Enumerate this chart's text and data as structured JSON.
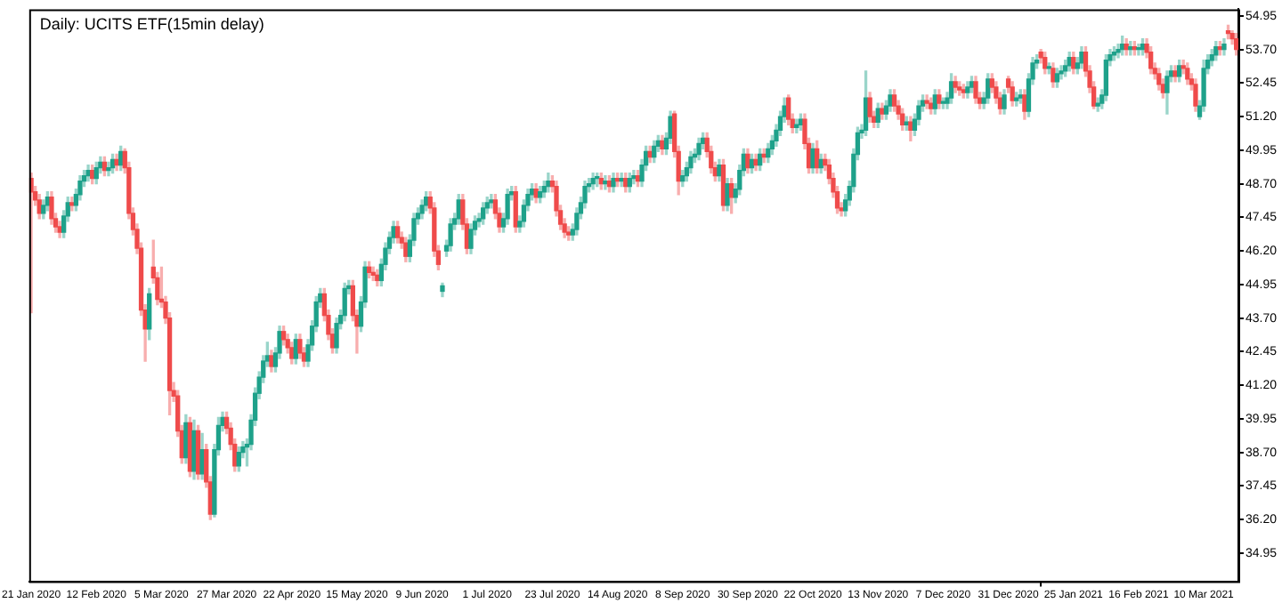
{
  "chart_data": {
    "type": "candlestick",
    "title": "Daily: UCITS ETF(15min delay)",
    "categories": [
      "21 Jan 2020",
      null,
      null,
      null,
      null,
      null,
      null,
      null,
      null,
      null,
      null,
      null,
      null,
      null,
      null,
      null,
      "12 Feb 2020",
      null,
      null,
      null,
      null,
      null,
      null,
      null,
      null,
      null,
      null,
      null,
      null,
      null,
      null,
      null,
      "5 Mar 2020",
      null,
      null,
      null,
      null,
      null,
      null,
      null,
      null,
      null,
      null,
      null,
      null,
      null,
      null,
      null,
      "27 Mar 2020",
      null,
      null,
      null,
      null,
      null,
      null,
      null,
      null,
      null,
      null,
      null,
      null,
      null,
      null,
      null,
      "22 Apr 2020",
      null,
      null,
      null,
      null,
      null,
      null,
      null,
      null,
      null,
      null,
      null,
      null,
      null,
      null,
      null,
      "15 May 2020",
      null,
      null,
      null,
      null,
      null,
      null,
      null,
      null,
      null,
      null,
      null,
      null,
      null,
      null,
      null,
      "9 Jun 2020",
      null,
      null,
      null,
      null,
      null,
      null,
      null,
      null,
      null,
      null,
      null,
      null,
      null,
      null,
      null,
      "1 Jul 2020",
      null,
      null,
      null,
      null,
      null,
      null,
      null,
      null,
      null,
      null,
      null,
      null,
      null,
      null,
      null,
      "23 Jul 2020",
      null,
      null,
      null,
      null,
      null,
      null,
      null,
      null,
      null,
      null,
      null,
      null,
      null,
      null,
      null,
      "14 Aug 2020",
      null,
      null,
      null,
      null,
      null,
      null,
      null,
      null,
      null,
      null,
      null,
      null,
      null,
      null,
      null,
      "8 Sep 2020",
      null,
      null,
      null,
      null,
      null,
      null,
      null,
      null,
      null,
      null,
      null,
      null,
      null,
      null,
      null,
      "30 Sep 2020",
      null,
      null,
      null,
      null,
      null,
      null,
      null,
      null,
      null,
      null,
      null,
      null,
      null,
      null,
      null,
      "22 Oct 2020",
      null,
      null,
      null,
      null,
      null,
      null,
      null,
      null,
      null,
      null,
      null,
      null,
      null,
      null,
      null,
      "13 Nov 2020",
      null,
      null,
      null,
      null,
      null,
      null,
      null,
      null,
      null,
      null,
      null,
      null,
      null,
      null,
      null,
      "7 Dec 2020",
      null,
      null,
      null,
      null,
      null,
      null,
      null,
      null,
      null,
      null,
      null,
      null,
      null,
      null,
      null,
      "31 Dec 2020",
      null,
      null,
      null,
      null,
      null,
      null,
      null,
      null,
      null,
      null,
      null,
      null,
      null,
      null,
      null,
      "25 Jan 2021",
      null,
      null,
      null,
      null,
      null,
      null,
      null,
      null,
      null,
      null,
      null,
      null,
      null,
      null,
      null,
      "16 Feb 2021",
      null,
      null,
      null,
      null,
      null,
      null,
      null,
      null,
      null,
      null,
      null,
      null,
      null,
      null,
      null,
      "10 Mar 2021",
      null,
      null,
      null,
      null,
      null,
      null,
      null,
      null
    ],
    "ohlc": [
      [
        48.9,
        49.1,
        43.9,
        48.4
      ],
      [
        48.4,
        48.6,
        47.9,
        48.1
      ],
      [
        48.1,
        48.3,
        47.4,
        47.6
      ],
      [
        47.6,
        48.1,
        47.4,
        47.9
      ],
      [
        47.9,
        48.4,
        47.7,
        48.2
      ],
      [
        48.2,
        48.4,
        47.2,
        47.4
      ],
      [
        47.4,
        47.6,
        46.9,
        47.1
      ],
      [
        47.1,
        47.3,
        46.7,
        46.9
      ],
      [
        46.9,
        47.7,
        46.7,
        47.5
      ],
      [
        47.5,
        48.2,
        47.3,
        48.0
      ],
      [
        48.0,
        48.2,
        47.7,
        47.9
      ],
      [
        47.9,
        48.5,
        47.7,
        48.3
      ],
      [
        48.3,
        49.0,
        48.1,
        48.8
      ],
      [
        48.8,
        49.2,
        48.6,
        49.0
      ],
      [
        49.0,
        49.4,
        48.8,
        49.2
      ],
      [
        49.2,
        49.4,
        48.7,
        48.9
      ],
      [
        48.9,
        49.5,
        48.7,
        49.3
      ],
      [
        49.3,
        49.7,
        49.1,
        49.5
      ],
      [
        49.5,
        49.7,
        49.0,
        49.2
      ],
      [
        49.2,
        49.5,
        49.0,
        49.3
      ],
      [
        49.3,
        49.8,
        49.1,
        49.6
      ],
      [
        49.6,
        49.8,
        49.2,
        49.4
      ],
      [
        49.4,
        50.1,
        49.2,
        49.9
      ],
      [
        49.9,
        50.0,
        49.1,
        49.3
      ],
      [
        49.3,
        49.5,
        47.4,
        47.6
      ],
      [
        47.6,
        47.8,
        46.8,
        47.0
      ],
      [
        47.0,
        47.2,
        46.1,
        46.3
      ],
      [
        46.3,
        46.5,
        43.8,
        44.0
      ],
      [
        44.0,
        44.2,
        42.1,
        43.3
      ],
      [
        43.3,
        44.8,
        42.9,
        44.6
      ],
      [
        45.6,
        46.6,
        45.0,
        45.2
      ],
      [
        45.2,
        45.4,
        44.2,
        44.4
      ],
      [
        44.4,
        45.6,
        44.1,
        44.3
      ],
      [
        44.3,
        44.5,
        43.5,
        43.7
      ],
      [
        43.7,
        43.9,
        40.1,
        41.0
      ],
      [
        41.0,
        41.3,
        40.6,
        40.8
      ],
      [
        40.8,
        41.0,
        39.3,
        39.5
      ],
      [
        39.5,
        39.7,
        38.3,
        38.5
      ],
      [
        38.5,
        40.1,
        38.3,
        39.8
      ],
      [
        39.8,
        40.0,
        37.8,
        38.0
      ],
      [
        38.0,
        39.9,
        37.7,
        39.5
      ],
      [
        39.5,
        39.7,
        37.7,
        37.9
      ],
      [
        37.9,
        39.4,
        37.7,
        38.8
      ],
      [
        38.8,
        39.0,
        37.4,
        37.6
      ],
      [
        37.6,
        37.8,
        36.2,
        36.4
      ],
      [
        36.4,
        39.0,
        36.3,
        38.8
      ],
      [
        38.8,
        40.0,
        38.6,
        39.7
      ],
      [
        39.7,
        40.2,
        39.5,
        40.0
      ],
      [
        40.0,
        40.2,
        39.4,
        39.6
      ],
      [
        39.6,
        39.8,
        38.8,
        39.0
      ],
      [
        39.0,
        39.2,
        38.0,
        38.2
      ],
      [
        38.2,
        38.9,
        38.0,
        38.7
      ],
      [
        38.7,
        39.1,
        38.5,
        38.9
      ],
      [
        38.9,
        39.2,
        38.2,
        39.0
      ],
      [
        39.0,
        40.1,
        38.8,
        39.9
      ],
      [
        39.9,
        41.1,
        39.7,
        40.9
      ],
      [
        40.9,
        41.7,
        40.7,
        41.5
      ],
      [
        41.5,
        42.3,
        41.3,
        42.1
      ],
      [
        42.1,
        42.8,
        41.9,
        42.3
      ],
      [
        42.3,
        42.5,
        41.7,
        41.9
      ],
      [
        41.9,
        42.6,
        41.7,
        42.4
      ],
      [
        42.4,
        43.4,
        42.2,
        43.2
      ],
      [
        43.2,
        43.4,
        42.7,
        42.9
      ],
      [
        42.9,
        43.1,
        42.4,
        42.6
      ],
      [
        42.6,
        42.8,
        42.0,
        42.2
      ],
      [
        42.2,
        43.1,
        42.0,
        42.9
      ],
      [
        42.9,
        43.1,
        42.2,
        42.4
      ],
      [
        42.4,
        42.6,
        41.9,
        42.1
      ],
      [
        42.1,
        42.9,
        41.9,
        42.7
      ],
      [
        42.7,
        43.6,
        42.5,
        43.4
      ],
      [
        43.4,
        44.5,
        43.2,
        44.3
      ],
      [
        44.3,
        44.8,
        44.1,
        44.6
      ],
      [
        44.6,
        44.8,
        43.6,
        43.8
      ],
      [
        43.8,
        44.0,
        42.9,
        43.1
      ],
      [
        43.1,
        43.3,
        42.4,
        42.6
      ],
      [
        42.6,
        43.7,
        42.4,
        43.5
      ],
      [
        43.5,
        44.0,
        43.3,
        43.8
      ],
      [
        43.8,
        45.0,
        43.6,
        44.8
      ],
      [
        44.8,
        45.1,
        44.6,
        44.9
      ],
      [
        44.9,
        45.1,
        43.6,
        43.8
      ],
      [
        43.8,
        44.0,
        42.4,
        43.4
      ],
      [
        43.4,
        44.5,
        43.2,
        44.3
      ],
      [
        44.3,
        45.8,
        44.1,
        45.6
      ],
      [
        45.6,
        45.8,
        45.2,
        45.4
      ],
      [
        45.4,
        45.6,
        45.1,
        45.3
      ],
      [
        45.3,
        45.5,
        44.9,
        45.1
      ],
      [
        45.1,
        45.9,
        44.9,
        45.7
      ],
      [
        45.7,
        46.5,
        45.5,
        46.3
      ],
      [
        46.3,
        46.9,
        46.1,
        46.7
      ],
      [
        46.7,
        47.3,
        46.5,
        47.1
      ],
      [
        47.1,
        47.3,
        46.5,
        46.7
      ],
      [
        46.7,
        46.9,
        46.3,
        46.5
      ],
      [
        46.5,
        46.7,
        45.8,
        46.0
      ],
      [
        46.0,
        46.8,
        45.8,
        46.6
      ],
      [
        46.6,
        47.6,
        46.4,
        47.4
      ],
      [
        47.4,
        47.8,
        47.2,
        47.6
      ],
      [
        47.6,
        48.1,
        47.4,
        47.9
      ],
      [
        47.9,
        48.4,
        47.7,
        48.2
      ],
      [
        48.2,
        48.4,
        47.6,
        47.8
      ],
      [
        47.8,
        48.0,
        46.0,
        46.2
      ],
      [
        46.2,
        46.4,
        45.5,
        45.7
      ],
      [
        44.7,
        45.0,
        44.5,
        44.9
      ],
      [
        46.2,
        46.6,
        46.0,
        46.4
      ],
      [
        46.4,
        47.4,
        46.2,
        47.2
      ],
      [
        47.2,
        47.6,
        47.0,
        47.4
      ],
      [
        47.4,
        48.3,
        47.2,
        48.1
      ],
      [
        48.1,
        48.3,
        47.0,
        47.2
      ],
      [
        47.2,
        47.4,
        46.1,
        46.3
      ],
      [
        46.3,
        47.2,
        46.1,
        47.0
      ],
      [
        47.0,
        47.5,
        46.8,
        47.3
      ],
      [
        47.3,
        47.6,
        47.1,
        47.4
      ],
      [
        47.4,
        48.0,
        47.2,
        47.8
      ],
      [
        47.8,
        48.2,
        47.6,
        48.0
      ],
      [
        48.0,
        48.3,
        47.8,
        48.1
      ],
      [
        48.1,
        48.3,
        47.4,
        47.6
      ],
      [
        47.6,
        47.8,
        46.9,
        47.1
      ],
      [
        47.1,
        47.6,
        46.9,
        47.4
      ],
      [
        47.4,
        48.5,
        47.2,
        48.3
      ],
      [
        48.3,
        48.6,
        48.1,
        48.4
      ],
      [
        48.4,
        48.6,
        46.9,
        47.1
      ],
      [
        47.1,
        47.5,
        46.9,
        47.3
      ],
      [
        47.3,
        48.1,
        47.1,
        47.9
      ],
      [
        47.9,
        48.5,
        47.7,
        48.3
      ],
      [
        48.3,
        48.7,
        48.1,
        48.5
      ],
      [
        48.5,
        48.7,
        48.0,
        48.2
      ],
      [
        48.2,
        48.6,
        48.0,
        48.4
      ],
      [
        48.4,
        48.8,
        48.2,
        48.6
      ],
      [
        48.6,
        49.1,
        48.4,
        48.8
      ],
      [
        48.8,
        49.0,
        48.4,
        48.6
      ],
      [
        48.6,
        48.8,
        47.5,
        47.7
      ],
      [
        47.7,
        47.9,
        47.0,
        47.2
      ],
      [
        47.2,
        47.4,
        46.7,
        46.9
      ],
      [
        46.9,
        47.1,
        46.6,
        46.8
      ],
      [
        46.8,
        47.2,
        46.6,
        47.0
      ],
      [
        47.0,
        47.8,
        46.8,
        47.6
      ],
      [
        47.6,
        48.2,
        47.4,
        48.0
      ],
      [
        48.0,
        48.8,
        47.8,
        48.6
      ],
      [
        48.6,
        48.9,
        48.4,
        48.7
      ],
      [
        48.7,
        49.1,
        48.5,
        48.9
      ],
      [
        48.9,
        49.1,
        48.6,
        48.9
      ],
      [
        48.9,
        49.1,
        48.5,
        48.7
      ],
      [
        48.7,
        49.0,
        48.5,
        48.8
      ],
      [
        48.8,
        49.0,
        48.4,
        48.6
      ],
      [
        48.6,
        49.1,
        48.4,
        48.9
      ],
      [
        48.9,
        49.1,
        48.6,
        48.8
      ],
      [
        48.8,
        49.1,
        48.6,
        48.9
      ],
      [
        48.9,
        49.1,
        48.4,
        48.6
      ],
      [
        48.6,
        49.1,
        48.4,
        48.9
      ],
      [
        48.9,
        49.2,
        48.7,
        49.0
      ],
      [
        49.0,
        49.2,
        48.6,
        48.8
      ],
      [
        48.8,
        49.6,
        48.6,
        49.4
      ],
      [
        49.4,
        50.1,
        49.2,
        49.9
      ],
      [
        49.9,
        50.1,
        49.5,
        49.7
      ],
      [
        49.7,
        50.3,
        49.5,
        50.1
      ],
      [
        50.1,
        50.5,
        49.9,
        50.3
      ],
      [
        50.3,
        50.5,
        49.8,
        50.0
      ],
      [
        50.0,
        50.6,
        49.8,
        50.4
      ],
      [
        50.4,
        51.4,
        50.2,
        51.2
      ],
      [
        51.3,
        51.4,
        49.7,
        49.9
      ],
      [
        49.9,
        50.1,
        48.3,
        48.8
      ],
      [
        48.8,
        49.2,
        48.6,
        49.0
      ],
      [
        49.0,
        49.5,
        48.8,
        49.3
      ],
      [
        49.3,
        49.9,
        49.1,
        49.7
      ],
      [
        49.7,
        50.0,
        49.5,
        49.8
      ],
      [
        49.8,
        50.4,
        49.6,
        50.2
      ],
      [
        50.2,
        50.6,
        50.0,
        50.4
      ],
      [
        50.4,
        50.6,
        49.7,
        49.9
      ],
      [
        49.9,
        50.1,
        49.1,
        49.3
      ],
      [
        49.3,
        49.5,
        48.8,
        49.0
      ],
      [
        49.0,
        49.6,
        48.8,
        49.4
      ],
      [
        49.4,
        49.6,
        47.7,
        47.9
      ],
      [
        47.9,
        48.9,
        47.7,
        48.7
      ],
      [
        48.7,
        48.9,
        47.6,
        48.2
      ],
      [
        48.2,
        48.7,
        48.0,
        48.5
      ],
      [
        48.5,
        49.4,
        48.3,
        49.2
      ],
      [
        49.2,
        50.0,
        49.0,
        49.8
      ],
      [
        49.8,
        50.0,
        49.1,
        49.3
      ],
      [
        49.3,
        49.8,
        49.1,
        49.6
      ],
      [
        49.6,
        49.8,
        49.2,
        49.4
      ],
      [
        49.4,
        50.0,
        49.2,
        49.8
      ],
      [
        49.8,
        50.0,
        49.5,
        49.7
      ],
      [
        49.7,
        50.2,
        49.5,
        50.0
      ],
      [
        50.0,
        50.5,
        49.8,
        50.3
      ],
      [
        50.3,
        50.9,
        50.1,
        50.7
      ],
      [
        50.7,
        51.4,
        50.5,
        51.2
      ],
      [
        51.2,
        51.9,
        51.0,
        51.6
      ],
      [
        51.9,
        52.0,
        50.9,
        51.1
      ],
      [
        51.1,
        51.3,
        50.6,
        50.8
      ],
      [
        50.8,
        51.1,
        50.6,
        50.9
      ],
      [
        50.9,
        51.3,
        50.7,
        51.1
      ],
      [
        51.1,
        51.3,
        50.0,
        50.2
      ],
      [
        50.2,
        50.4,
        49.1,
        49.3
      ],
      [
        49.3,
        50.2,
        49.1,
        50.0
      ],
      [
        50.0,
        50.3,
        49.1,
        49.3
      ],
      [
        49.3,
        49.8,
        49.1,
        49.6
      ],
      [
        49.6,
        49.8,
        49.2,
        49.4
      ],
      [
        49.4,
        49.6,
        48.7,
        48.9
      ],
      [
        48.9,
        49.1,
        48.2,
        48.4
      ],
      [
        48.4,
        48.6,
        47.6,
        47.8
      ],
      [
        47.8,
        48.0,
        47.5,
        47.7
      ],
      [
        47.7,
        48.3,
        47.5,
        48.1
      ],
      [
        48.1,
        48.8,
        47.9,
        48.6
      ],
      [
        48.6,
        50.0,
        48.4,
        49.8
      ],
      [
        49.8,
        50.8,
        49.6,
        50.6
      ],
      [
        50.6,
        50.9,
        50.4,
        50.7
      ],
      [
        50.7,
        52.9,
        50.5,
        51.9
      ],
      [
        51.9,
        52.1,
        51.0,
        51.2
      ],
      [
        51.2,
        51.4,
        50.8,
        51.0
      ],
      [
        51.0,
        51.7,
        50.8,
        51.5
      ],
      [
        51.5,
        51.7,
        51.1,
        51.3
      ],
      [
        51.3,
        51.8,
        51.1,
        51.6
      ],
      [
        51.6,
        52.2,
        51.4,
        52.0
      ],
      [
        52.0,
        52.2,
        51.4,
        51.6
      ],
      [
        51.6,
        51.8,
        51.1,
        51.3
      ],
      [
        51.3,
        51.5,
        50.7,
        50.9
      ],
      [
        50.9,
        51.2,
        50.7,
        51.0
      ],
      [
        51.0,
        51.2,
        50.3,
        50.7
      ],
      [
        50.7,
        51.3,
        50.5,
        51.1
      ],
      [
        51.1,
        51.8,
        50.9,
        51.6
      ],
      [
        51.6,
        52.0,
        51.4,
        51.8
      ],
      [
        51.8,
        52.0,
        51.5,
        51.7
      ],
      [
        51.7,
        51.9,
        51.3,
        51.5
      ],
      [
        51.5,
        52.2,
        51.3,
        52.0
      ],
      [
        52.0,
        52.2,
        51.5,
        51.7
      ],
      [
        51.7,
        51.9,
        51.5,
        51.7
      ],
      [
        51.7,
        52.1,
        51.5,
        51.9
      ],
      [
        51.9,
        52.8,
        51.7,
        52.5
      ],
      [
        52.5,
        52.7,
        52.1,
        52.3
      ],
      [
        52.3,
        52.5,
        52.0,
        52.2
      ],
      [
        52.2,
        52.4,
        51.9,
        52.1
      ],
      [
        52.1,
        52.5,
        51.9,
        52.3
      ],
      [
        52.3,
        52.7,
        52.1,
        52.5
      ],
      [
        52.5,
        52.7,
        51.7,
        51.9
      ],
      [
        51.9,
        52.1,
        51.5,
        51.7
      ],
      [
        51.7,
        52.1,
        51.5,
        51.9
      ],
      [
        51.9,
        52.8,
        51.7,
        52.6
      ],
      [
        52.6,
        52.8,
        52.1,
        52.3
      ],
      [
        52.3,
        52.5,
        51.7,
        51.9
      ],
      [
        51.9,
        52.1,
        51.3,
        51.5
      ],
      [
        51.5,
        52.2,
        51.3,
        52.0
      ],
      [
        52.6,
        52.7,
        52.1,
        52.3
      ],
      [
        52.3,
        52.5,
        51.6,
        51.8
      ],
      [
        51.8,
        52.1,
        51.6,
        51.9
      ],
      [
        51.9,
        52.2,
        51.7,
        52.0
      ],
      [
        52.0,
        52.2,
        51.1,
        51.4
      ],
      [
        51.4,
        52.8,
        51.2,
        52.6
      ],
      [
        52.6,
        53.4,
        52.4,
        53.2
      ],
      [
        53.2,
        53.5,
        53.0,
        53.3
      ],
      [
        53.6,
        53.7,
        53.2,
        53.4
      ],
      [
        53.4,
        53.6,
        52.8,
        53.0
      ],
      [
        53.0,
        53.2,
        52.8,
        53.0
      ],
      [
        53.0,
        53.2,
        52.3,
        52.5
      ],
      [
        52.5,
        53.0,
        52.3,
        52.8
      ],
      [
        52.8,
        53.1,
        52.6,
        52.9
      ],
      [
        52.9,
        53.3,
        52.7,
        53.1
      ],
      [
        53.1,
        53.6,
        52.9,
        53.4
      ],
      [
        53.4,
        53.6,
        52.8,
        53.0
      ],
      [
        53.0,
        53.4,
        52.8,
        53.2
      ],
      [
        53.2,
        53.8,
        53.0,
        53.6
      ],
      [
        53.6,
        53.8,
        52.7,
        52.9
      ],
      [
        52.9,
        53.1,
        52.1,
        52.3
      ],
      [
        52.3,
        52.5,
        51.5,
        51.6
      ],
      [
        51.6,
        51.9,
        51.4,
        51.7
      ],
      [
        51.7,
        52.2,
        51.5,
        52.0
      ],
      [
        52.0,
        53.5,
        51.8,
        53.3
      ],
      [
        53.3,
        53.7,
        53.1,
        53.5
      ],
      [
        53.5,
        53.8,
        53.3,
        53.6
      ],
      [
        53.6,
        53.9,
        53.4,
        53.7
      ],
      [
        53.7,
        54.2,
        53.5,
        53.9
      ],
      [
        53.9,
        54.1,
        53.5,
        53.7
      ],
      [
        53.7,
        54.0,
        53.5,
        53.8
      ],
      [
        53.8,
        54.0,
        53.5,
        53.7
      ],
      [
        53.7,
        53.9,
        53.5,
        53.7
      ],
      [
        53.7,
        54.1,
        53.5,
        53.9
      ],
      [
        53.9,
        54.1,
        53.4,
        53.6
      ],
      [
        53.6,
        53.8,
        52.8,
        53.0
      ],
      [
        53.0,
        53.2,
        52.6,
        52.8
      ],
      [
        52.8,
        53.0,
        52.2,
        52.4
      ],
      [
        52.4,
        52.6,
        51.9,
        52.1
      ],
      [
        52.1,
        52.9,
        51.3,
        52.7
      ],
      [
        52.7,
        53.1,
        52.5,
        52.9
      ],
      [
        52.9,
        53.1,
        52.5,
        52.7
      ],
      [
        52.7,
        53.3,
        52.5,
        53.1
      ],
      [
        53.1,
        53.3,
        52.8,
        53.0
      ],
      [
        53.0,
        53.2,
        52.4,
        52.6
      ],
      [
        52.6,
        52.8,
        52.2,
        52.4
      ],
      [
        52.4,
        52.6,
        51.4,
        51.6
      ],
      [
        51.2,
        51.8,
        51.1,
        51.6
      ],
      [
        51.6,
        53.3,
        51.4,
        53.0
      ],
      [
        53.0,
        53.5,
        52.8,
        53.3
      ],
      [
        53.3,
        53.7,
        53.1,
        53.5
      ],
      [
        53.5,
        54.0,
        53.3,
        53.8
      ],
      [
        53.8,
        54.0,
        53.5,
        53.7
      ],
      [
        53.7,
        54.1,
        53.5,
        53.9
      ],
      [
        54.4,
        54.6,
        54.1,
        54.3
      ],
      [
        54.3,
        54.4,
        53.9,
        54.1
      ],
      [
        54.1,
        54.3,
        53.5,
        53.7
      ]
    ],
    "colors": [
      "#ef4b4b",
      "#ef4b4b",
      "#ef4b4b",
      "#1ea18a",
      "#1ea18a",
      "#ef4b4b",
      "#ef4b4b",
      "#ef4b4b",
      "#1ea18a",
      "#1ea18a",
      "#ef4b4b",
      "#1ea18a",
      "#1ea18a",
      "#1ea18a",
      "#1ea18a",
      "#ef4b4b",
      "#1ea18a",
      "#1ea18a",
      "#ef4b4b",
      "#1ea18a",
      "#1ea18a",
      "#ef4b4b",
      "#1ea18a",
      "#ef4b4b",
      "#ef4b4b",
      "#ef4b4b",
      "#ef4b4b",
      "#ef4b4b",
      "#ef4b4b",
      "#1ea18a",
      "#ef4b4b",
      "#ef4b4b",
      "#ef4b4b",
      "#ef4b4b",
      "#ef4b4b",
      "#ef4b4b",
      "#ef4b4b",
      "#ef4b4b",
      "#1ea18a",
      "#ef4b4b",
      "#1ea18a",
      "#ef4b4b",
      "#1ea18a",
      "#ef4b4b",
      "#ef4b4b",
      "#1ea18a",
      "#1ea18a",
      "#1ea18a",
      "#ef4b4b",
      "#ef4b4b",
      "#ef4b4b",
      "#1ea18a",
      "#1ea18a",
      "#1ea18a",
      "#1ea18a",
      "#1ea18a",
      "#1ea18a",
      "#1ea18a",
      "#1ea18a",
      "#ef4b4b",
      "#1ea18a",
      "#1ea18a",
      "#ef4b4b",
      "#ef4b4b",
      "#ef4b4b",
      "#1ea18a",
      "#ef4b4b",
      "#ef4b4b",
      "#1ea18a",
      "#1ea18a",
      "#1ea18a",
      "#1ea18a",
      "#ef4b4b",
      "#ef4b4b",
      "#ef4b4b",
      "#1ea18a",
      "#1ea18a",
      "#1ea18a",
      "#1ea18a",
      "#ef4b4b",
      "#ef4b4b",
      "#1ea18a",
      "#1ea18a",
      "#ef4b4b",
      "#ef4b4b",
      "#ef4b4b",
      "#1ea18a",
      "#1ea18a",
      "#1ea18a",
      "#1ea18a",
      "#ef4b4b",
      "#ef4b4b",
      "#ef4b4b",
      "#1ea18a",
      "#1ea18a",
      "#1ea18a",
      "#1ea18a",
      "#1ea18a",
      "#ef4b4b",
      "#ef4b4b",
      "#ef4b4b",
      "#1ea18a",
      "#1ea18a",
      "#1ea18a",
      "#1ea18a",
      "#1ea18a",
      "#ef4b4b",
      "#ef4b4b",
      "#1ea18a",
      "#1ea18a",
      "#1ea18a",
      "#1ea18a",
      "#1ea18a",
      "#1ea18a",
      "#ef4b4b",
      "#ef4b4b",
      "#1ea18a",
      "#1ea18a",
      "#1ea18a",
      "#ef4b4b",
      "#1ea18a",
      "#1ea18a",
      "#1ea18a",
      "#1ea18a",
      "#ef4b4b",
      "#1ea18a",
      "#1ea18a",
      "#1ea18a",
      "#ef4b4b",
      "#ef4b4b",
      "#ef4b4b",
      "#ef4b4b",
      "#ef4b4b",
      "#1ea18a",
      "#1ea18a",
      "#1ea18a",
      "#1ea18a",
      "#1ea18a",
      "#1ea18a",
      "#1ea18a",
      "#ef4b4b",
      "#1ea18a",
      "#ef4b4b",
      "#1ea18a",
      "#ef4b4b",
      "#1ea18a",
      "#ef4b4b",
      "#1ea18a",
      "#1ea18a",
      "#ef4b4b",
      "#1ea18a",
      "#1ea18a",
      "#ef4b4b",
      "#1ea18a",
      "#1ea18a",
      "#ef4b4b",
      "#1ea18a",
      "#1ea18a",
      "#ef4b4b",
      "#ef4b4b",
      "#1ea18a",
      "#1ea18a",
      "#1ea18a",
      "#1ea18a",
      "#1ea18a",
      "#1ea18a",
      "#ef4b4b",
      "#ef4b4b",
      "#ef4b4b",
      "#1ea18a",
      "#ef4b4b",
      "#1ea18a",
      "#ef4b4b",
      "#1ea18a",
      "#1ea18a",
      "#1ea18a",
      "#ef4b4b",
      "#1ea18a",
      "#ef4b4b",
      "#1ea18a",
      "#ef4b4b",
      "#1ea18a",
      "#1ea18a",
      "#1ea18a",
      "#1ea18a",
      "#1ea18a",
      "#ef4b4b",
      "#ef4b4b",
      "#1ea18a",
      "#1ea18a",
      "#ef4b4b",
      "#ef4b4b",
      "#1ea18a",
      "#ef4b4b",
      "#1ea18a",
      "#ef4b4b",
      "#ef4b4b",
      "#ef4b4b",
      "#ef4b4b",
      "#ef4b4b",
      "#1ea18a",
      "#1ea18a",
      "#1ea18a",
      "#1ea18a",
      "#1ea18a",
      "#1ea18a",
      "#ef4b4b",
      "#ef4b4b",
      "#1ea18a",
      "#ef4b4b",
      "#1ea18a",
      "#1ea18a",
      "#ef4b4b",
      "#ef4b4b",
      "#ef4b4b",
      "#1ea18a",
      "#ef4b4b",
      "#1ea18a",
      "#1ea18a",
      "#1ea18a",
      "#ef4b4b",
      "#ef4b4b",
      "#1ea18a",
      "#ef4b4b",
      "#1ea18a",
      "#1ea18a",
      "#1ea18a",
      "#ef4b4b",
      "#ef4b4b",
      "#ef4b4b",
      "#1ea18a",
      "#1ea18a",
      "#ef4b4b",
      "#ef4b4b",
      "#1ea18a",
      "#1ea18a",
      "#ef4b4b",
      "#ef4b4b",
      "#ef4b4b",
      "#1ea18a",
      "#ef4b4b",
      "#ef4b4b",
      "#1ea18a",
      "#1ea18a",
      "#ef4b4b",
      "#1ea18a",
      "#1ea18a",
      "#1ea18a",
      "#ef4b4b",
      "#ef4b4b",
      "#1ea18a",
      "#ef4b4b",
      "#1ea18a",
      "#1ea18a",
      "#1ea18a",
      "#1ea18a",
      "#ef4b4b",
      "#1ea18a",
      "#1ea18a",
      "#ef4b4b",
      "#ef4b4b",
      "#ef4b4b",
      "#1ea18a",
      "#1ea18a",
      "#1ea18a",
      "#1ea18a",
      "#1ea18a",
      "#1ea18a",
      "#1ea18a",
      "#ef4b4b",
      "#1ea18a",
      "#ef4b4b",
      "#1ea18a",
      "#1ea18a",
      "#ef4b4b",
      "#ef4b4b",
      "#ef4b4b",
      "#ef4b4b",
      "#ef4b4b",
      "#1ea18a",
      "#1ea18a",
      "#ef4b4b",
      "#1ea18a",
      "#ef4b4b",
      "#ef4b4b",
      "#ef4b4b",
      "#ef4b4b",
      "#1ea18a",
      "#1ea18a",
      "#1ea18a",
      "#1ea18a",
      "#1ea18a",
      "#ef4b4b",
      "#1ea18a",
      "#ef4b4b",
      "#ef4b4b",
      "#ef4b4b"
    ],
    "ylim": [
      33.9,
      55.2
    ],
    "yticks": [
      54.95,
      {
        "value": 53.7,
        "label": "53.70"
      },
      {
        "value": 51.2,
        "label": "51.20"
      },
      {
        "value": 52.45,
        "label": "52.45"
      },
      49.95,
      {
        "value": 48.7,
        "label": "48.70"
      },
      47.45,
      {
        "value": 46.2,
        "label": "46.20"
      },
      44.95,
      {
        "value": 43.7,
        "label": "43.70"
      },
      42.45,
      {
        "value": 41.2,
        "label": "41.20"
      },
      39.95,
      {
        "value": 38.7,
        "label": "38.70"
      },
      37.45,
      {
        "value": 36.2,
        "label": "36.20"
      },
      34.95
    ]
  }
}
